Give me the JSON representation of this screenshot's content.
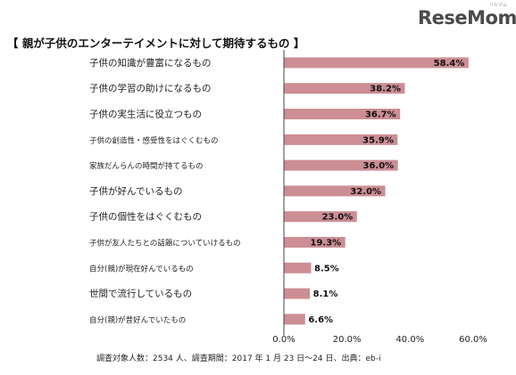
{
  "logo": {
    "text": "ReseMom",
    "sub": "リセマム"
  },
  "chart_data": {
    "type": "bar",
    "orientation": "horizontal",
    "title": "【 親が子供のエンターテイメントに対して期待するもの 】",
    "categories": [
      "子供の知識が豊富になるもの",
      "子供の学習の助けになるもの",
      "子供の実生活に役立つもの",
      "子供の創造性・感受性をはぐくむもの",
      "家族だんらんの時間が持てるもの",
      "子供が好んでいるもの",
      "子供の個性をはぐくむもの",
      "子供が友人たちとの話題についていけるもの",
      "自分(親)が現在好んでいるもの",
      "世間で流行しているもの",
      "自分(親)が昔好んでいたもの"
    ],
    "values": [
      58.4,
      38.2,
      36.7,
      35.9,
      36.0,
      32.0,
      23.0,
      19.3,
      8.5,
      8.1,
      6.6
    ],
    "value_labels": [
      "58.4%",
      "38.2%",
      "36.7%",
      "35.9%",
      "36.0%",
      "32.0%",
      "23.0%",
      "19.3%",
      "8.5%",
      "8.1%",
      "6.6%"
    ],
    "xlim": [
      0,
      60
    ],
    "xticks": [
      0,
      20,
      40,
      60
    ],
    "xtick_labels": [
      "0.0%",
      "20.0%",
      "40.0%",
      "60.0%"
    ],
    "bar_color": "#cc8e94",
    "grid": false,
    "legend": "none",
    "xlabel": "",
    "ylabel": ""
  },
  "footnote": "調査対象人数：2534 人、調査期間：2017 年 1 月 23 日～24 日、出典：eb-i"
}
